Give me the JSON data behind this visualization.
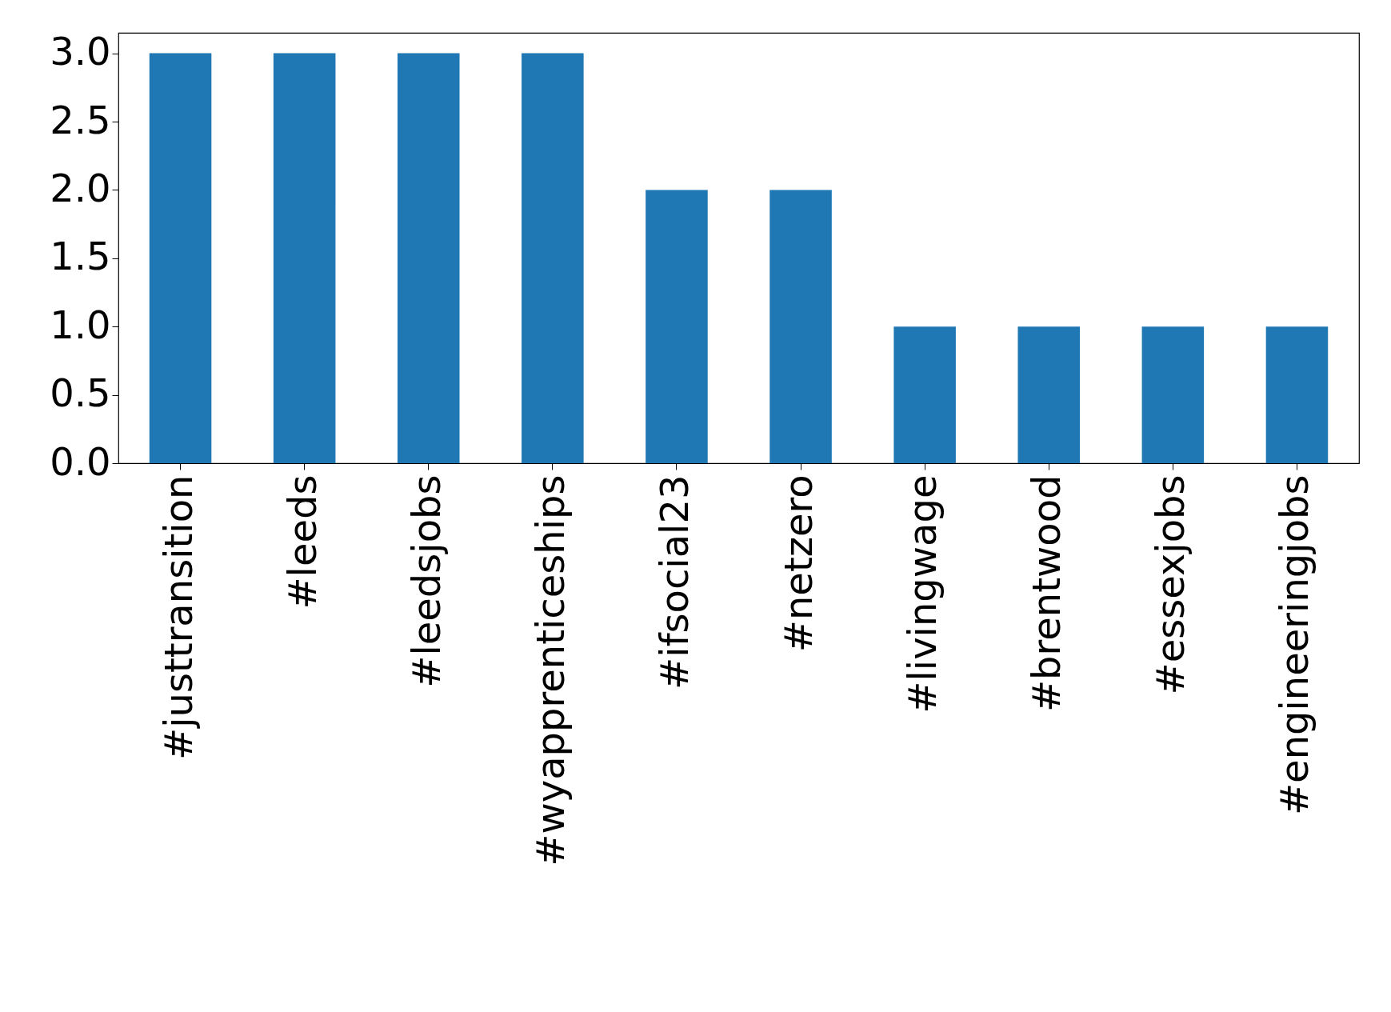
{
  "chart_data": {
    "type": "bar",
    "categories": [
      "#justtransition",
      "#leeds",
      "#leedsjobs",
      "#wyapprenticeships",
      "#ifsocial23",
      "#netzero",
      "#livingwage",
      "#brentwood",
      "#essexjobs",
      "#engineeringjobs"
    ],
    "values": [
      3,
      3,
      3,
      3,
      2,
      2,
      1,
      1,
      1,
      1
    ],
    "color": "#1f77b4",
    "ylim": [
      0,
      3.15
    ],
    "yticks": [
      {
        "value": 0,
        "label": "0.0"
      },
      {
        "value": 0.5,
        "label": "0.5"
      },
      {
        "value": 1,
        "label": "1.0"
      },
      {
        "value": 1.5,
        "label": "1.5"
      },
      {
        "value": 2,
        "label": "2.0"
      },
      {
        "value": 2.5,
        "label": "2.5"
      },
      {
        "value": 3,
        "label": "3.0"
      }
    ],
    "grid": false
  }
}
